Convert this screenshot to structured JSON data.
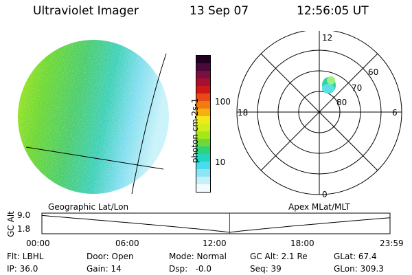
{
  "header": {
    "instrument": "Ultraviolet Imager",
    "date": "13 Sep 07",
    "time": "12:56:05 UT"
  },
  "colorbar": {
    "unit_label": "photon cm-2s-1",
    "ticks": [
      "100",
      "10"
    ],
    "colors": [
      "#220022",
      "#4a0a3a",
      "#7a1040",
      "#a81030",
      "#d01818",
      "#e84a18",
      "#f07c10",
      "#f6b010",
      "#f2e81a",
      "#d0ee1a",
      "#a4e81a",
      "#6ed83a",
      "#2ed27a",
      "#22d6c0",
      "#48dcec",
      "#8ce6f2",
      "#c6f0f8",
      "#f2fcfe"
    ]
  },
  "image_panel": {
    "geo_label": "Geographic Lat/Lon",
    "gradient": [
      "#a8e81a",
      "#6cd82e",
      "#48cc6a",
      "#3cd0b8",
      "#80def0",
      "#c8f2fa"
    ]
  },
  "polar_plot": {
    "apex_label": "Apex MLat/MLT",
    "mlt_labels": {
      "top": "12",
      "right": "6",
      "left": "18",
      "bottom": "0"
    },
    "lat_labels": [
      "60",
      "70",
      "80"
    ],
    "blob_colors": [
      "#2ed4a0",
      "#9ef080",
      "#5ce0e8"
    ]
  },
  "timeline": {
    "y_axis_label": "GC Alt",
    "y_ticks": [
      "9.0",
      "1.8"
    ],
    "x_ticks": [
      "00:00",
      "06:00",
      "12:00",
      "18:00",
      "23:59"
    ],
    "marker_time": "12:56",
    "marker_color": "#cc0000"
  },
  "footer": {
    "filter": "Flt: LBHL",
    "ip": "IP: 36.0",
    "door": "Door: Open",
    "gain": "Gain: 14",
    "mode": "Mode: Normal",
    "dsp": "Dsp:   -0.0",
    "gc_alt": "GC Alt: 2.1 Re",
    "seq": "Seq: 39",
    "glat": "GLat: 67.4",
    "glon": "GLon: 309.3"
  }
}
